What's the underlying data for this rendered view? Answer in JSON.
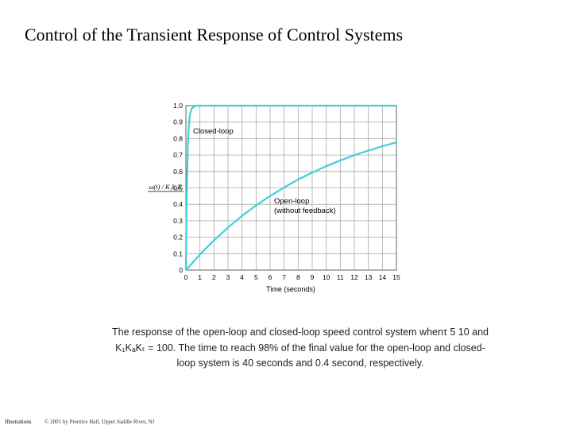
{
  "slide": {
    "title": "Control of the Transient Response of Control Systems",
    "footer_left": "Illustrations",
    "footer_copyright": "© 2001 by Prentice Hall, Upper Saddle River, NJ"
  },
  "caption": {
    "line1": "The response of the open-loop and closed-loop speed control system whenτ 5 10 and",
    "line2": "K₁KₐKₜ = 100. The time to reach 98% of the final value for the open-loop and closed-",
    "line3": "loop system is 40 seconds and 0.4 second, respectively."
  },
  "chart_data": {
    "type": "line",
    "xlabel": "Time (seconds)",
    "ylabel": "ω(t) / K₁k₂E",
    "xlim": [
      0,
      15
    ],
    "ylim": [
      0,
      1.0
    ],
    "x_ticks": [
      "0",
      "1",
      "2",
      "3",
      "4",
      "5",
      "6",
      "7",
      "8",
      "9",
      "10",
      "11",
      "12",
      "13",
      "14",
      "15"
    ],
    "y_ticks": [
      "0",
      "0.1",
      "0.2",
      "0.3",
      "0.4",
      "0.5",
      "0.6",
      "0.7",
      "0.8",
      "0.9",
      "1.0"
    ],
    "grid": true,
    "line_color": "#3fd0d8",
    "series": [
      {
        "name": "Closed-loop",
        "x": [
          0,
          0.05,
          0.1,
          0.15,
          0.2,
          0.25,
          0.3,
          0.4,
          0.5,
          0.7,
          1,
          2,
          5,
          10,
          15
        ],
        "values": [
          0,
          0.39,
          0.63,
          0.78,
          0.86,
          0.92,
          0.95,
          0.98,
          0.99,
          1.0,
          1.0,
          1.0,
          1.0,
          1.0,
          1.0
        ]
      },
      {
        "name": "Open-loop",
        "sublabel": "(without feedback)",
        "x": [
          0,
          1,
          2,
          3,
          4,
          5,
          6,
          7,
          8,
          9,
          10,
          11,
          12,
          13,
          14,
          15
        ],
        "values": [
          0,
          0.095,
          0.181,
          0.259,
          0.33,
          0.393,
          0.451,
          0.503,
          0.551,
          0.593,
          0.632,
          0.667,
          0.699,
          0.727,
          0.753,
          0.777
        ]
      }
    ]
  }
}
